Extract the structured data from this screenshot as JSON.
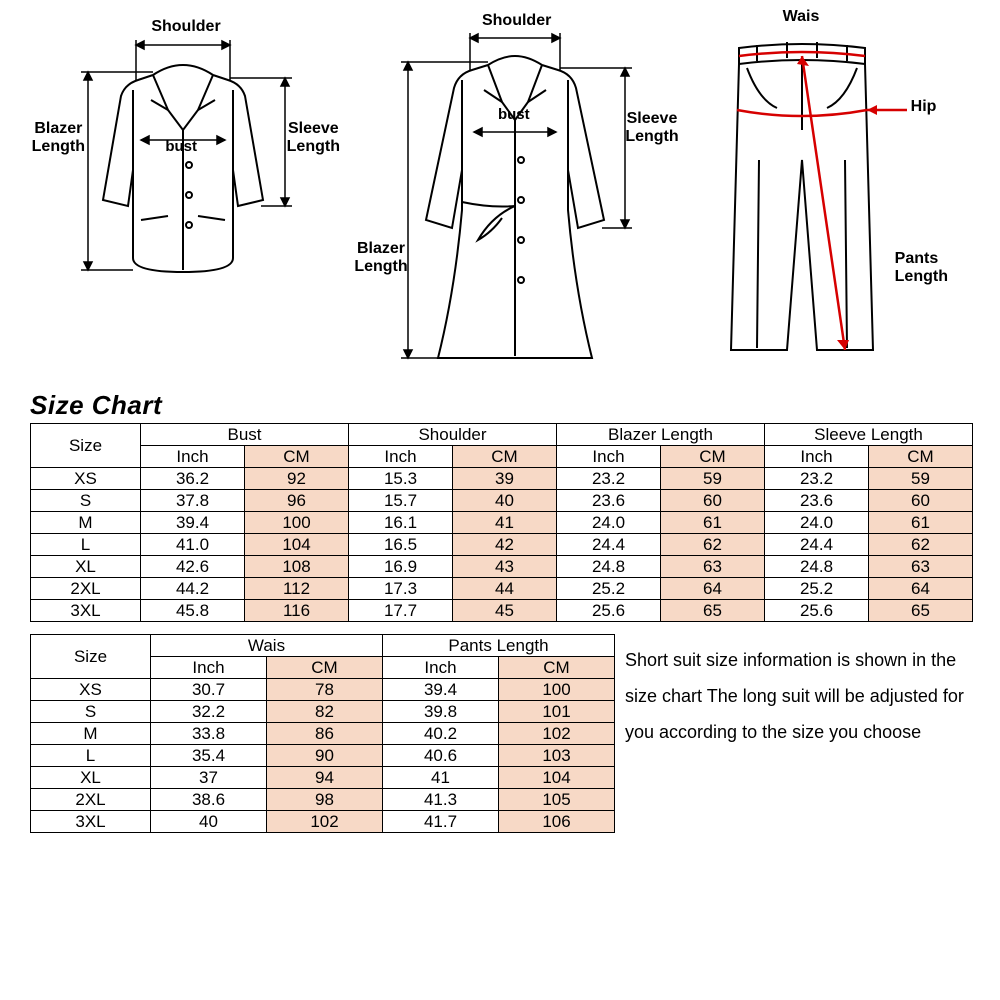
{
  "diagrams": {
    "blazer": {
      "shoulder": "Shoulder",
      "bust": "bust",
      "blazer_length": "Blazer\nLength",
      "sleeve_length": "Sleeve\nLength"
    },
    "coat": {
      "shoulder": "Shoulder",
      "bust": "bust",
      "blazer_length": "Blazer\nLength",
      "sleeve_length": "Sleeve\nLength"
    },
    "pants": {
      "wais": "Wais",
      "hip": "Hip",
      "pants_length": "Pants\nLength"
    }
  },
  "title": "Size Chart",
  "table1": {
    "size_header": "Size",
    "groups": [
      "Bust",
      "Shoulder",
      "Blazer Length",
      "Sleeve Length"
    ],
    "units": [
      "Inch",
      "CM"
    ],
    "rows": [
      {
        "size": "XS",
        "vals": [
          "36.2",
          "92",
          "15.3",
          "39",
          "23.2",
          "59",
          "23.2",
          "59"
        ]
      },
      {
        "size": "S",
        "vals": [
          "37.8",
          "96",
          "15.7",
          "40",
          "23.6",
          "60",
          "23.6",
          "60"
        ]
      },
      {
        "size": "M",
        "vals": [
          "39.4",
          "100",
          "16.1",
          "41",
          "24.0",
          "61",
          "24.0",
          "61"
        ]
      },
      {
        "size": "L",
        "vals": [
          "41.0",
          "104",
          "16.5",
          "42",
          "24.4",
          "62",
          "24.4",
          "62"
        ]
      },
      {
        "size": "XL",
        "vals": [
          "42.6",
          "108",
          "16.9",
          "43",
          "24.8",
          "63",
          "24.8",
          "63"
        ]
      },
      {
        "size": "2XL",
        "vals": [
          "44.2",
          "112",
          "17.3",
          "44",
          "25.2",
          "64",
          "25.2",
          "64"
        ]
      },
      {
        "size": "3XL",
        "vals": [
          "45.8",
          "116",
          "17.7",
          "45",
          "25.6",
          "65",
          "25.6",
          "65"
        ]
      }
    ]
  },
  "table2": {
    "size_header": "Size",
    "groups": [
      "Wais",
      "Pants Length"
    ],
    "units": [
      "Inch",
      "CM"
    ],
    "rows": [
      {
        "size": "XS",
        "vals": [
          "30.7",
          "78",
          "39.4",
          "100"
        ]
      },
      {
        "size": "S",
        "vals": [
          "32.2",
          "82",
          "39.8",
          "101"
        ]
      },
      {
        "size": "M",
        "vals": [
          "33.8",
          "86",
          "40.2",
          "102"
        ]
      },
      {
        "size": "L",
        "vals": [
          "35.4",
          "90",
          "40.6",
          "103"
        ]
      },
      {
        "size": "XL",
        "vals": [
          "37",
          "94",
          "41",
          "104"
        ]
      },
      {
        "size": "2XL",
        "vals": [
          "38.6",
          "98",
          "41.3",
          "105"
        ]
      },
      {
        "size": "3XL",
        "vals": [
          "40",
          "102",
          "41.7",
          "106"
        ]
      }
    ]
  },
  "note": "Short suit size information is shown in the size chart The long suit will be adjusted for you according to the size you choose",
  "colors": {
    "cm_bg": "#f7d9c6",
    "border": "#000000",
    "arrow": "#d60000"
  }
}
